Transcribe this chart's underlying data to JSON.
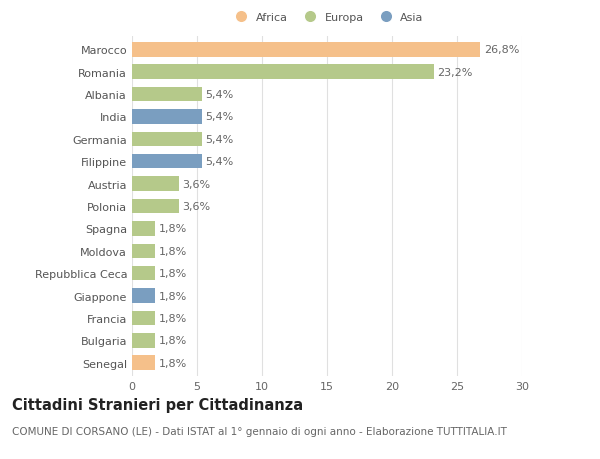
{
  "categories": [
    "Marocco",
    "Romania",
    "Albania",
    "India",
    "Germania",
    "Filippine",
    "Austria",
    "Polonia",
    "Spagna",
    "Moldova",
    "Repubblica Ceca",
    "Giappone",
    "Francia",
    "Bulgaria",
    "Senegal"
  ],
  "values": [
    26.8,
    23.2,
    5.4,
    5.4,
    5.4,
    5.4,
    3.6,
    3.6,
    1.8,
    1.8,
    1.8,
    1.8,
    1.8,
    1.8,
    1.8
  ],
  "labels": [
    "26,8%",
    "23,2%",
    "5,4%",
    "5,4%",
    "5,4%",
    "5,4%",
    "3,6%",
    "3,6%",
    "1,8%",
    "1,8%",
    "1,8%",
    "1,8%",
    "1,8%",
    "1,8%",
    "1,8%"
  ],
  "colors": [
    "#f5c08a",
    "#b5c98a",
    "#b5c98a",
    "#7a9ec0",
    "#b5c98a",
    "#7a9ec0",
    "#b5c98a",
    "#b5c98a",
    "#b5c98a",
    "#b5c98a",
    "#b5c98a",
    "#7a9ec0",
    "#b5c98a",
    "#b5c98a",
    "#f5c08a"
  ],
  "legend_labels": [
    "Africa",
    "Europa",
    "Asia"
  ],
  "legend_colors": [
    "#f5c08a",
    "#b5c98a",
    "#7a9ec0"
  ],
  "title": "Cittadini Stranieri per Cittadinanza",
  "subtitle": "COMUNE DI CORSANO (LE) - Dati ISTAT al 1° gennaio di ogni anno - Elaborazione TUTTITALIA.IT",
  "xlim": [
    0,
    30
  ],
  "xticks": [
    0,
    5,
    10,
    15,
    20,
    25,
    30
  ],
  "background_color": "#ffffff",
  "grid_color": "#e0e0e0",
  "bar_height": 0.65,
  "label_fontsize": 8.0,
  "tick_fontsize": 8.0,
  "title_fontsize": 10.5,
  "subtitle_fontsize": 7.5
}
